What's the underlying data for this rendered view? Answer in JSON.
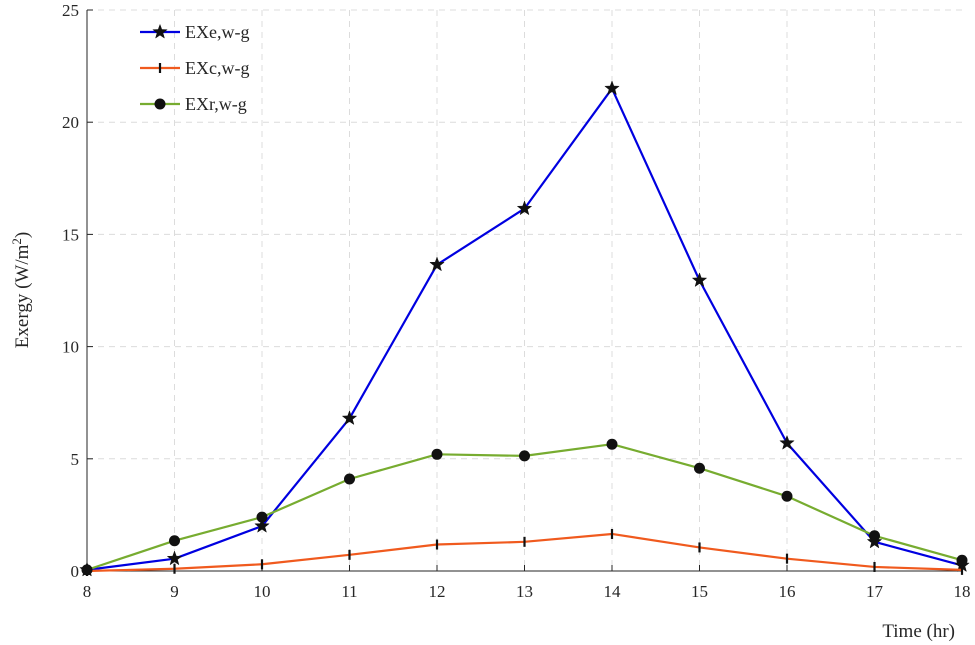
{
  "chart_data": {
    "type": "line",
    "x": [
      8,
      9,
      10,
      11,
      12,
      13,
      14,
      15,
      16,
      17,
      18
    ],
    "xlabel": "Time (hr)",
    "ylabel_main": "Exergy (W/m",
    "ylabel_sup": "2",
    "ylabel_close": ")",
    "xlim": [
      8,
      18
    ],
    "ylim": [
      0,
      25
    ],
    "xticks": [
      "8",
      "9",
      "10",
      "11",
      "12",
      "13",
      "14",
      "15",
      "16",
      "17",
      "18"
    ],
    "yticks": [
      "0",
      "5",
      "10",
      "15",
      "20",
      "25"
    ],
    "grid": true,
    "legend_position": "top-left",
    "series": [
      {
        "name": "EXe,w-g",
        "color": "#0000e0",
        "marker": "star",
        "values": [
          0.05,
          0.55,
          2.0,
          6.8,
          13.65,
          16.15,
          21.5,
          12.95,
          5.7,
          1.3,
          0.25
        ]
      },
      {
        "name": "EXc,w-g",
        "color": "#f05a1e",
        "marker": "vline",
        "values": [
          0.0,
          0.1,
          0.3,
          0.72,
          1.18,
          1.3,
          1.65,
          1.05,
          0.55,
          0.18,
          0.05
        ]
      },
      {
        "name": "EXr,w-g",
        "color": "#77ac30",
        "marker": "circle",
        "values": [
          0.05,
          1.35,
          2.4,
          4.1,
          5.2,
          5.13,
          5.65,
          4.58,
          3.33,
          1.57,
          0.48
        ]
      }
    ]
  }
}
